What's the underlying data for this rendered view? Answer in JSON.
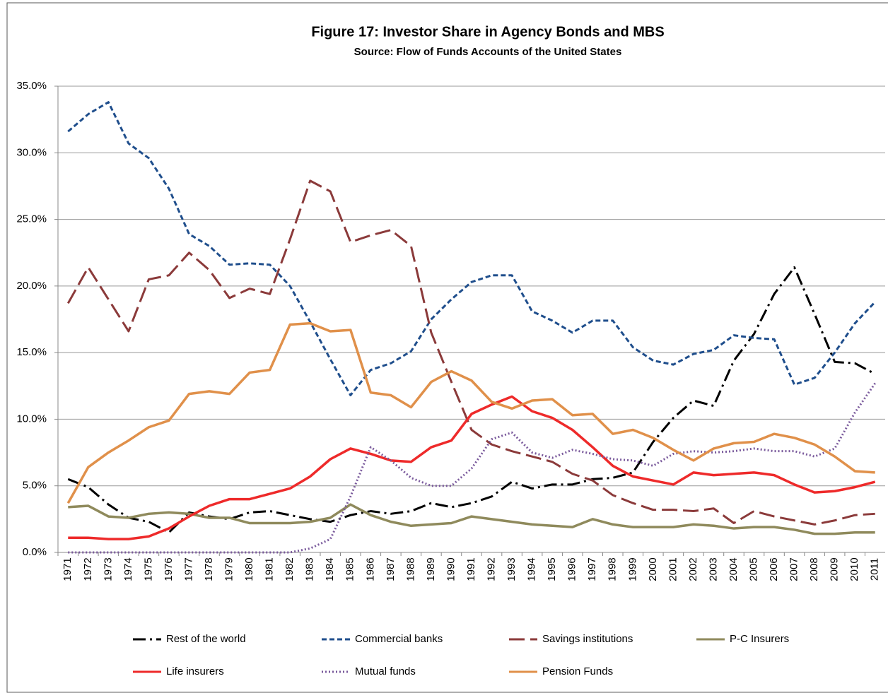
{
  "chart_data": {
    "type": "line",
    "title": "Figure 17: Investor Share in Agency Bonds and MBS",
    "subtitle": "Source: Flow of Funds Accounts of the United States",
    "categories": [
      "1971",
      "1972",
      "1973",
      "1974",
      "1975",
      "1976",
      "1977",
      "1978",
      "1979",
      "1980",
      "1981",
      "1982",
      "1983",
      "1984",
      "1985",
      "1986",
      "1987",
      "1988",
      "1989",
      "1990",
      "1991",
      "1992",
      "1993",
      "1994",
      "1995",
      "1996",
      "1997",
      "1998",
      "1999",
      "2000",
      "2001",
      "2002",
      "2003",
      "2004",
      "2005",
      "2006",
      "2007",
      "2008",
      "2009",
      "2010",
      "2011"
    ],
    "ylim": [
      0,
      35
    ],
    "yticks": [
      {
        "value": 0,
        "label": "0.0%"
      },
      {
        "value": 5,
        "label": "5.0%"
      },
      {
        "value": 10,
        "label": "10.0%"
      },
      {
        "value": 15,
        "label": "15.0%"
      },
      {
        "value": 20,
        "label": "20.0%"
      },
      {
        "value": 25,
        "label": "25.0%"
      },
      {
        "value": 30,
        "label": "30.0%"
      },
      {
        "value": 35,
        "label": "35.0%"
      }
    ],
    "grid": true,
    "legend": "bottom",
    "series": [
      {
        "name": "Rest of the world",
        "color": "#000000",
        "dash": "dash-dot",
        "values": [
          5.5,
          4.9,
          3.6,
          2.6,
          2.3,
          1.5,
          3.0,
          2.7,
          2.5,
          3.0,
          3.1,
          2.8,
          2.5,
          2.3,
          2.8,
          3.1,
          2.9,
          3.1,
          3.7,
          3.4,
          3.7,
          4.2,
          5.3,
          4.8,
          5.1,
          5.1,
          5.5,
          5.6,
          6.0,
          8.3,
          10.1,
          11.4,
          11.0,
          14.4,
          16.4,
          19.4,
          21.4,
          17.9,
          14.3,
          14.2,
          13.4
        ]
      },
      {
        "name": "Commercial banks",
        "color": "#1f4e8c",
        "dash": "dashed",
        "values": [
          31.6,
          32.9,
          33.8,
          30.7,
          29.6,
          27.3,
          23.9,
          23.0,
          21.6,
          21.7,
          21.6,
          20.0,
          17.3,
          14.5,
          11.8,
          13.7,
          14.2,
          15.1,
          17.5,
          19.0,
          20.3,
          20.8,
          20.8,
          18.1,
          17.4,
          16.5,
          17.4,
          17.4,
          15.4,
          14.4,
          14.1,
          14.9,
          15.2,
          16.3,
          16.1,
          16.0,
          12.6,
          13.1,
          15.0,
          17.2,
          18.8
        ]
      },
      {
        "name": "Savings institutions",
        "color": "#8b3a3a",
        "dash": "long-dash",
        "values": [
          18.7,
          21.4,
          19.0,
          16.6,
          20.5,
          20.8,
          22.5,
          21.2,
          19.1,
          19.8,
          19.4,
          23.5,
          27.9,
          27.1,
          23.3,
          23.8,
          24.2,
          23.0,
          16.5,
          12.8,
          9.2,
          8.1,
          7.6,
          7.2,
          6.8,
          5.9,
          5.4,
          4.3,
          3.7,
          3.2,
          3.2,
          3.1,
          3.3,
          2.2,
          3.1,
          2.7,
          2.4,
          2.1,
          2.4,
          2.8,
          2.9
        ]
      },
      {
        "name": "P-C Insurers",
        "color": "#8f8a5c",
        "dash": "solid",
        "values": [
          3.4,
          3.5,
          2.7,
          2.6,
          2.9,
          3.0,
          2.9,
          2.6,
          2.6,
          2.2,
          2.2,
          2.2,
          2.3,
          2.6,
          3.6,
          2.8,
          2.3,
          2.0,
          2.1,
          2.2,
          2.7,
          2.5,
          2.3,
          2.1,
          2.0,
          1.9,
          2.5,
          2.1,
          1.9,
          1.9,
          1.9,
          2.1,
          2.0,
          1.8,
          1.9,
          1.9,
          1.7,
          1.4,
          1.4,
          1.5,
          1.5
        ]
      },
      {
        "name": "Life insurers",
        "color": "#ee2a2a",
        "dash": "solid",
        "values": [
          1.1,
          1.1,
          1.0,
          1.0,
          1.2,
          1.8,
          2.7,
          3.5,
          4.0,
          4.0,
          4.4,
          4.8,
          5.7,
          7.0,
          7.8,
          7.4,
          6.9,
          6.8,
          7.9,
          8.4,
          10.4,
          11.1,
          11.7,
          10.6,
          10.1,
          9.2,
          7.9,
          6.5,
          5.7,
          5.4,
          5.1,
          6.0,
          5.8,
          5.9,
          6.0,
          5.8,
          5.1,
          4.5,
          4.6,
          4.9,
          5.3
        ]
      },
      {
        "name": "Mutual funds",
        "color": "#7a5a9c",
        "dash": "dotted",
        "values": [
          0,
          0,
          0,
          0,
          0,
          0,
          0,
          0,
          0,
          0,
          0,
          0,
          0.3,
          1.0,
          4.2,
          7.9,
          6.9,
          5.6,
          5.0,
          5.0,
          6.3,
          8.5,
          9.0,
          7.5,
          7.1,
          7.7,
          7.4,
          7.0,
          6.9,
          6.5,
          7.4,
          7.6,
          7.5,
          7.6,
          7.8,
          7.6,
          7.6,
          7.2,
          7.8,
          10.5,
          12.7
        ]
      },
      {
        "name": "Pension Funds",
        "color": "#e0904a",
        "dash": "solid",
        "values": [
          3.7,
          6.4,
          7.5,
          8.4,
          9.4,
          9.9,
          11.9,
          12.1,
          11.9,
          13.5,
          13.7,
          17.1,
          17.2,
          16.6,
          16.7,
          12.0,
          11.8,
          10.9,
          12.8,
          13.6,
          12.9,
          11.3,
          10.8,
          11.4,
          11.5,
          10.3,
          10.4,
          8.9,
          9.2,
          8.6,
          7.7,
          6.9,
          7.8,
          8.2,
          8.3,
          8.9,
          8.6,
          8.1,
          7.2,
          6.1,
          6.0
        ]
      }
    ]
  }
}
